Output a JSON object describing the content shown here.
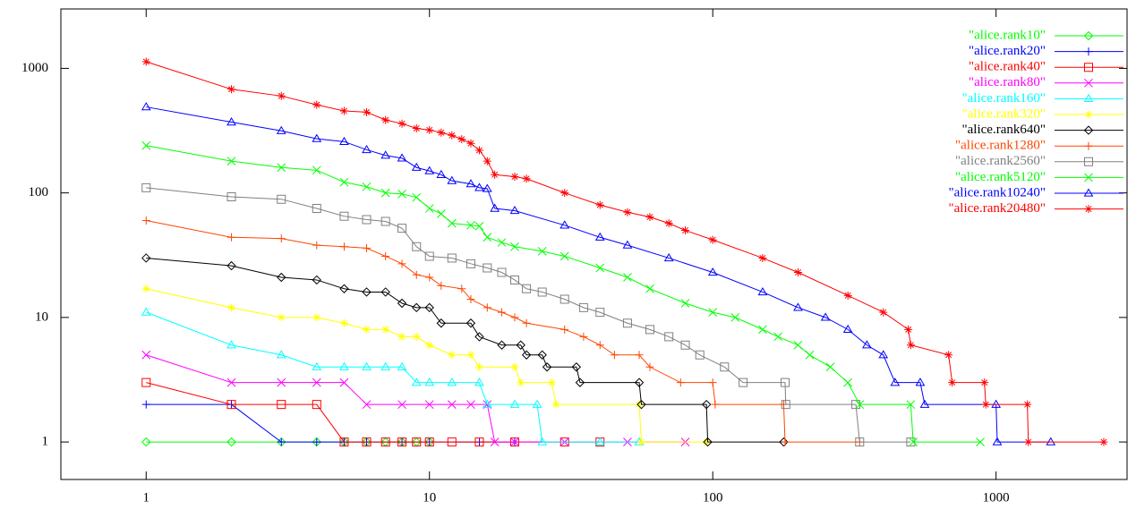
{
  "chart_data": {
    "type": "line",
    "xlog": true,
    "ylog": true,
    "xlim": [
      0.5,
      2900
    ],
    "ylim": [
      0.5,
      3000
    ],
    "xticks": [
      1,
      10,
      100,
      1000
    ],
    "yticks": [
      1,
      10,
      100,
      1000
    ],
    "legend": "top-right",
    "series": [
      {
        "name": "\"alice.rank10\"",
        "color": "#00ff00",
        "marker": "diamond",
        "x": [
          1,
          2,
          3,
          4,
          5,
          6,
          7,
          8,
          9,
          10
        ],
        "values": [
          1,
          1,
          1,
          1,
          1,
          1,
          1,
          1,
          1,
          1
        ]
      },
      {
        "name": "\"alice.rank20\"",
        "color": "#0000ff",
        "marker": "plus",
        "x": [
          1,
          2,
          3,
          4,
          5,
          6,
          8,
          10,
          15,
          20
        ],
        "values": [
          2,
          2,
          1,
          1,
          1,
          1,
          1,
          1,
          1,
          1
        ]
      },
      {
        "name": "\"alice.rank40\"",
        "color": "#ff0000",
        "marker": "square",
        "x": [
          1,
          2,
          3,
          4,
          5,
          6,
          7,
          8,
          9,
          10,
          12,
          15,
          20,
          30,
          40
        ],
        "values": [
          3,
          2,
          2,
          2,
          1,
          1,
          1,
          1,
          1,
          1,
          1,
          1,
          1,
          1,
          1
        ]
      },
      {
        "name": "\"alice.rank80\"",
        "color": "#ff00ff",
        "marker": "cross",
        "x": [
          1,
          2,
          3,
          4,
          5,
          6,
          8,
          10,
          12,
          14,
          16,
          17,
          20,
          30,
          50,
          80
        ],
        "values": [
          5,
          3,
          3,
          3,
          3,
          2,
          2,
          2,
          2,
          2,
          2,
          1,
          1,
          1,
          1,
          1
        ]
      },
      {
        "name": "\"alice.rank160\"",
        "color": "#00ffff",
        "marker": "triangle",
        "x": [
          1,
          2,
          3,
          4,
          5,
          6,
          7,
          8,
          9,
          10,
          12,
          15,
          16,
          20,
          24,
          25,
          40,
          55
        ],
        "values": [
          11,
          6,
          5,
          4,
          4,
          4,
          4,
          4,
          3,
          3,
          3,
          3,
          2,
          2,
          2,
          1,
          1,
          1
        ]
      },
      {
        "name": "\"alice.rank320\"",
        "color": "#ffff00",
        "marker": "star",
        "x": [
          1,
          2,
          3,
          4,
          5,
          6,
          7,
          8,
          9,
          10,
          12,
          14,
          15,
          20,
          21,
          27,
          28,
          55,
          56,
          95
        ],
        "values": [
          17,
          12,
          10,
          10,
          9,
          8,
          8,
          7,
          7,
          6,
          5,
          5,
          4,
          4,
          3,
          3,
          2,
          2,
          1,
          1
        ]
      },
      {
        "name": "\"alice.rank640\"",
        "color": "#000000",
        "marker": "diamond",
        "x": [
          1,
          2,
          3,
          4,
          5,
          6,
          7,
          8,
          9,
          10,
          11,
          14,
          15,
          18,
          21,
          22,
          25,
          26,
          33,
          34,
          55,
          56,
          95,
          96,
          178
        ],
        "values": [
          30,
          26,
          21,
          20,
          17,
          16,
          16,
          13,
          12,
          12,
          9,
          9,
          7,
          6,
          6,
          5,
          5,
          4,
          4,
          3,
          3,
          2,
          2,
          1,
          1
        ]
      },
      {
        "name": "\"alice.rank1280\"",
        "color": "#ff4500",
        "marker": "plus",
        "x": [
          1,
          2,
          3,
          4,
          5,
          6,
          7,
          8,
          9,
          10,
          11,
          13,
          14,
          16,
          18,
          20,
          22,
          30,
          35,
          40,
          45,
          55,
          60,
          77,
          100,
          102,
          178,
          180,
          330
        ],
        "values": [
          60,
          44,
          43,
          38,
          37,
          36,
          31,
          27,
          22,
          21,
          18,
          17,
          14,
          12,
          11,
          10,
          9,
          8,
          7,
          6,
          5,
          5,
          4,
          3,
          3,
          2,
          2,
          1,
          1
        ]
      },
      {
        "name": "\"alice.rank2560\"",
        "color": "#808080",
        "marker": "square",
        "x": [
          1,
          2,
          3,
          4,
          5,
          6,
          7,
          8,
          9,
          10,
          12,
          14,
          16,
          18,
          20,
          22,
          25,
          30,
          35,
          40,
          50,
          60,
          70,
          80,
          90,
          110,
          128,
          180,
          181,
          320,
          330,
          500
        ],
        "values": [
          110,
          93,
          89,
          75,
          65,
          61,
          59,
          52,
          37,
          31,
          30,
          27,
          25,
          23,
          20,
          17,
          16,
          14,
          12,
          11,
          9,
          8,
          7,
          6,
          5,
          4,
          3,
          3,
          2,
          2,
          1,
          1
        ]
      },
      {
        "name": "\"alice.rank5120\"",
        "color": "#00ff00",
        "marker": "cross",
        "x": [
          1,
          2,
          3,
          4,
          5,
          6,
          7,
          8,
          9,
          10,
          11,
          12,
          14,
          15,
          16,
          18,
          20,
          25,
          30,
          40,
          50,
          60,
          80,
          100,
          120,
          150,
          170,
          200,
          220,
          260,
          300,
          330,
          500,
          510,
          880
        ],
        "values": [
          240,
          180,
          160,
          152,
          122,
          112,
          100,
          98,
          92,
          75,
          68,
          57,
          55,
          54,
          44,
          40,
          37,
          34,
          31,
          25,
          21,
          17,
          13,
          11,
          10,
          8,
          7,
          6,
          5,
          4,
          3,
          2,
          2,
          1,
          1
        ]
      },
      {
        "name": "\"alice.rank10240\"",
        "color": "#0000ff",
        "marker": "triangle",
        "x": [
          1,
          2,
          3,
          4,
          5,
          6,
          7,
          8,
          9,
          10,
          11,
          12,
          14,
          15,
          16,
          17,
          20,
          30,
          40,
          50,
          70,
          100,
          150,
          200,
          250,
          300,
          350,
          400,
          440,
          540,
          560,
          1000,
          1010,
          1560
        ],
        "values": [
          490,
          370,
          315,
          272,
          258,
          222,
          200,
          190,
          160,
          150,
          140,
          125,
          118,
          110,
          108,
          75,
          72,
          55,
          44,
          38,
          30,
          23,
          16,
          12,
          10,
          8,
          6,
          5,
          3,
          3,
          2,
          2,
          1,
          1
        ]
      },
      {
        "name": "\"alice.rank20480\"",
        "color": "#ff0000",
        "marker": "star",
        "x": [
          1,
          2,
          3,
          4,
          5,
          6,
          7,
          8,
          9,
          10,
          11,
          12,
          13,
          14,
          15,
          16,
          17,
          20,
          22,
          30,
          40,
          50,
          60,
          70,
          80,
          100,
          150,
          200,
          300,
          400,
          490,
          500,
          680,
          700,
          910,
          920,
          1290,
          1300,
          2400
        ],
        "values": [
          1130,
          680,
          600,
          510,
          455,
          445,
          385,
          360,
          330,
          320,
          305,
          290,
          270,
          250,
          220,
          180,
          140,
          135,
          130,
          100,
          80,
          70,
          64,
          57,
          50,
          42,
          30,
          23,
          15,
          11,
          8,
          6,
          5,
          3,
          3,
          2,
          2,
          1,
          1
        ]
      }
    ]
  }
}
